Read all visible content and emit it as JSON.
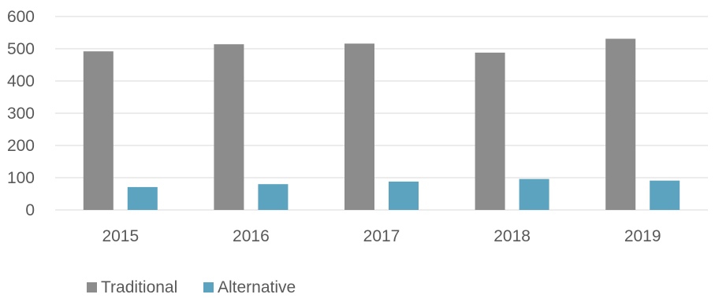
{
  "chart_data": {
    "type": "bar",
    "categories": [
      "2015",
      "2016",
      "2017",
      "2018",
      "2019"
    ],
    "series": [
      {
        "name": "Traditional",
        "values": [
          492,
          514,
          516,
          488,
          531
        ]
      },
      {
        "name": "Alternative",
        "values": [
          71,
          80,
          88,
          96,
          91
        ]
      }
    ],
    "ylim": [
      0,
      600
    ],
    "yticks": [
      "0",
      "100",
      "200",
      "300",
      "400",
      "500",
      "600"
    ],
    "grid": true,
    "legend": "bottom-left",
    "colors": {
      "Traditional": "#8c8c8c",
      "Alternative": "#5ba3bf"
    }
  }
}
